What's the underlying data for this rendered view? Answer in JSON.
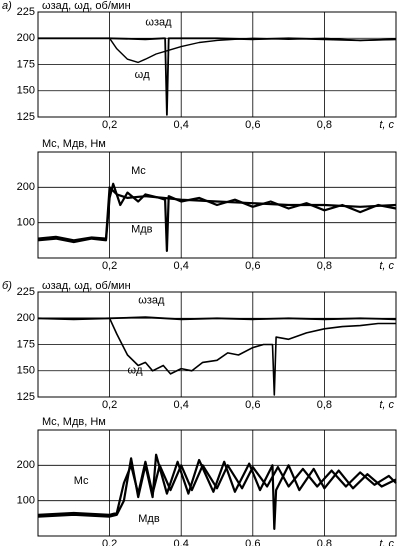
{
  "chart_data": [
    {
      "type": "line",
      "panel": "а)",
      "ylabel": "ωзад, ωд, об/мин",
      "xlabel": "t, c",
      "xlim": [
        0,
        1
      ],
      "xticks": [
        {
          "value": 0.2,
          "label": "0,2"
        },
        {
          "value": 0.4,
          "label": "0,4"
        },
        {
          "value": 0.6,
          "label": "0,6"
        },
        {
          "value": 0.8,
          "label": "0,8"
        }
      ],
      "ylim": [
        125,
        225
      ],
      "yticks": [
        125,
        150,
        175,
        200,
        225
      ],
      "grid": true,
      "series": [
        {
          "name": "ωзад",
          "color": "#000000",
          "x": [
            0,
            0.1,
            0.2,
            0.3,
            0.35,
            0.355,
            0.36,
            0.365,
            0.5,
            0.6,
            0.7,
            0.8,
            0.9,
            1
          ],
          "values": [
            200,
            200,
            200,
            199,
            200,
            200,
            127,
            200,
            200,
            199,
            200,
            199,
            198,
            199
          ]
        },
        {
          "name": "ωд",
          "color": "#000000",
          "x": [
            0,
            0.2,
            0.22,
            0.25,
            0.28,
            0.3,
            0.33,
            0.36,
            0.4,
            0.45,
            0.5,
            0.55,
            0.6,
            0.7,
            0.8,
            0.9,
            1
          ],
          "values": [
            200,
            200,
            190,
            180,
            177,
            180,
            185,
            188,
            192,
            196,
            198,
            199,
            200,
            199,
            200,
            198,
            199
          ]
        }
      ]
    },
    {
      "type": "line",
      "ylabel": "Mс, Mдв, Нм",
      "xlabel": "t, c",
      "xlim": [
        0,
        1
      ],
      "xticks": [
        {
          "value": 0.2,
          "label": "0,2"
        },
        {
          "value": 0.4,
          "label": "0,4"
        },
        {
          "value": 0.6,
          "label": "0,6"
        },
        {
          "value": 0.8,
          "label": "0,8"
        }
      ],
      "ylim": [
        0,
        300
      ],
      "yticks": [
        100,
        200
      ],
      "grid": true,
      "series": [
        {
          "name": "Mс",
          "color": "#000000",
          "x": [
            0,
            0.05,
            0.1,
            0.15,
            0.19,
            0.2,
            0.22,
            0.25,
            0.3,
            0.35,
            0.4,
            0.5,
            0.6,
            0.7,
            0.8,
            0.9,
            1
          ],
          "values": [
            55,
            60,
            50,
            58,
            55,
            200,
            180,
            170,
            175,
            170,
            165,
            160,
            155,
            150,
            150,
            145,
            150
          ]
        },
        {
          "name": "Mдв",
          "color": "#000000",
          "x": [
            0,
            0.05,
            0.1,
            0.15,
            0.19,
            0.2,
            0.21,
            0.23,
            0.25,
            0.28,
            0.3,
            0.34,
            0.355,
            0.36,
            0.365,
            0.4,
            0.45,
            0.5,
            0.55,
            0.6,
            0.65,
            0.7,
            0.75,
            0.8,
            0.85,
            0.9,
            0.95,
            1
          ],
          "values": [
            50,
            55,
            45,
            55,
            50,
            170,
            210,
            150,
            185,
            160,
            180,
            170,
            165,
            20,
            175,
            160,
            170,
            150,
            165,
            145,
            160,
            140,
            155,
            135,
            150,
            130,
            150,
            140
          ]
        }
      ]
    },
    {
      "type": "line",
      "panel": "б)",
      "ylabel": "ωзад, ωд, об/мин",
      "xlabel": "t, c",
      "xlim": [
        0,
        1
      ],
      "xticks": [
        {
          "value": 0.2,
          "label": "0,2"
        },
        {
          "value": 0.4,
          "label": "0,4"
        },
        {
          "value": 0.6,
          "label": "0,6"
        },
        {
          "value": 0.8,
          "label": "0,8"
        }
      ],
      "ylim": [
        125,
        225
      ],
      "yticks": [
        125,
        150,
        175,
        200,
        225
      ],
      "grid": true,
      "series": [
        {
          "name": "ωзад",
          "color": "#000000",
          "x": [
            0,
            0.1,
            0.2,
            0.3,
            0.4,
            0.5,
            0.6,
            0.7,
            0.8,
            0.9,
            1
          ],
          "values": [
            200,
            199,
            200,
            201,
            199,
            200,
            199,
            200,
            199,
            200,
            199
          ]
        },
        {
          "name": "ωд",
          "color": "#000000",
          "x": [
            0,
            0.2,
            0.22,
            0.25,
            0.28,
            0.3,
            0.32,
            0.35,
            0.37,
            0.4,
            0.43,
            0.46,
            0.5,
            0.53,
            0.56,
            0.6,
            0.63,
            0.655,
            0.66,
            0.665,
            0.7,
            0.75,
            0.8,
            0.85,
            0.9,
            0.95,
            1
          ],
          "values": [
            200,
            200,
            185,
            165,
            155,
            158,
            150,
            155,
            147,
            152,
            150,
            158,
            160,
            167,
            165,
            172,
            175,
            175,
            127,
            182,
            180,
            186,
            190,
            192,
            193,
            195,
            195
          ]
        }
      ]
    },
    {
      "type": "line",
      "ylabel": "Mс, Mдв, Нм",
      "xlabel": "t, c",
      "xlim": [
        0,
        1
      ],
      "xticks": [
        {
          "value": 0.2,
          "label": "0,2"
        },
        {
          "value": 0.4,
          "label": "0,4"
        },
        {
          "value": 0.6,
          "label": "0,6"
        },
        {
          "value": 0.8,
          "label": "0,8"
        }
      ],
      "ylim": [
        0,
        300
      ],
      "yticks": [
        100,
        200
      ],
      "grid": true,
      "series": [
        {
          "name": "Mс",
          "color": "#000000",
          "x": [
            0,
            0.1,
            0.2,
            0.22,
            0.24,
            0.26,
            0.28,
            0.3,
            0.32,
            0.34,
            0.37,
            0.4,
            0.43,
            0.46,
            0.5,
            0.53,
            0.57,
            0.6,
            0.64,
            0.67,
            0.7,
            0.74,
            0.78,
            0.82,
            0.86,
            0.9,
            0.94,
            0.98,
            1
          ],
          "values": [
            60,
            65,
            60,
            65,
            150,
            200,
            120,
            210,
            120,
            200,
            130,
            200,
            130,
            200,
            135,
            200,
            135,
            195,
            140,
            195,
            140,
            190,
            140,
            185,
            140,
            180,
            145,
            170,
            150
          ]
        },
        {
          "name": "Mдв",
          "color": "#000000",
          "x": [
            0,
            0.1,
            0.2,
            0.22,
            0.24,
            0.26,
            0.28,
            0.3,
            0.32,
            0.33,
            0.36,
            0.39,
            0.42,
            0.45,
            0.49,
            0.52,
            0.55,
            0.59,
            0.62,
            0.655,
            0.66,
            0.665,
            0.7,
            0.73,
            0.77,
            0.8,
            0.84,
            0.88,
            0.92,
            0.96,
            1
          ],
          "values": [
            55,
            60,
            55,
            60,
            100,
            220,
            110,
            200,
            110,
            230,
            120,
            210,
            120,
            215,
            125,
            210,
            125,
            205,
            130,
            200,
            20,
            130,
            200,
            130,
            190,
            135,
            185,
            135,
            175,
            140,
            160
          ]
        }
      ]
    }
  ]
}
